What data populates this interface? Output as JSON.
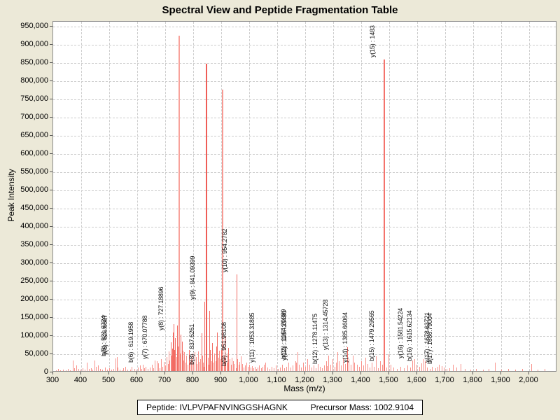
{
  "title": "Spectral View and Peptide Fragmentation Table",
  "footer": {
    "peptide_label": "Peptide:",
    "peptide_value": "IVLPVPAFNVINGGSHAGNK",
    "precursor_label": "Precursor Mass:",
    "precursor_value": "1002.9104"
  },
  "chart_data": {
    "type": "bar",
    "title": "Spectral View and Peptide Fragmentation Table",
    "xlabel": "Mass (m/z)",
    "ylabel": "Peak Intensity",
    "xlim": [
      300,
      2100
    ],
    "ylim": [
      0,
      963000
    ],
    "y_axis_max_tick": 950000,
    "grid": "dashed",
    "legend": "none",
    "x_ticks": [
      300,
      400,
      500,
      600,
      700,
      800,
      900,
      1000,
      1100,
      1200,
      1300,
      1400,
      1500,
      1600,
      1700,
      1800,
      1900,
      2000
    ],
    "y_ticks": [
      0,
      50000,
      100000,
      150000,
      200000,
      250000,
      300000,
      350000,
      400000,
      450000,
      500000,
      550000,
      600000,
      650000,
      700000,
      750000,
      800000,
      850000,
      900000,
      950000
    ],
    "colors": {
      "background": "#ece9d8",
      "plot_bg": "#ffffff",
      "grid": "#cdcdcd",
      "text": "#000000",
      "peak": "#f8938c",
      "peak_strong": "#f26b63",
      "peak_915k": "#f8a29b",
      "peak_845k": "#ef5d57",
      "peak_775k": "#f79a93",
      "peak_860k": "#f4736c"
    },
    "annotated_peaks": [
      {
        "label": "b(5) : 521.6724",
        "mz": 521.7,
        "intensity": 38000
      },
      {
        "label": "y(5) : 526.6887",
        "mz": 526.7,
        "intensity": 43000
      },
      {
        "label": "b(6) : 619.1958",
        "mz": 619.2,
        "intensity": 22000
      },
      {
        "label": "y(7) : 670.07788",
        "mz": 670.1,
        "intensity": 30000
      },
      {
        "label": "y(8) : 727.18896",
        "mz": 727.2,
        "intensity": 110000
      },
      {
        "label": "b(8) : 837.6261",
        "mz": 837.6,
        "intensity": 15000
      },
      {
        "label": "y(9) : 841.09399",
        "mz": 841.1,
        "intensity": 195000
      },
      {
        "label": "b(9) : 951.98108",
        "mz": 952.0,
        "intensity": 12000
      },
      {
        "label": "y(10) : 954.2782",
        "mz": 954.3,
        "intensity": 270000
      },
      {
        "label": "y(11) : 1053.31885",
        "mz": 1053.3,
        "intensity": 22000
      },
      {
        "label": "b(11) : 1164.20389",
        "mz": 1164.2,
        "intensity": 30000
      },
      {
        "label": "y(12) : 1167.33496",
        "mz": 1167.3,
        "intensity": 27000
      },
      {
        "label": "b(12) : 1278.11475",
        "mz": 1278.1,
        "intensity": 18000
      },
      {
        "label": "y(13) : 1314.45728",
        "mz": 1314.5,
        "intensity": 55000
      },
      {
        "label": "y(14) : 1385.66064",
        "mz": 1385.7,
        "intensity": 22000
      },
      {
        "label": "b(15) : 1479.29565",
        "mz": 1479.3,
        "intensity": 25000
      },
      {
        "label": "y(15) : 1483",
        "mz": 1483.3,
        "intensity": 860000,
        "color": "peak_860k"
      },
      {
        "label": "y(16) : 1581.54224",
        "mz": 1581.5,
        "intensity": 32000
      },
      {
        "label": "b(16) : 1615.62134",
        "mz": 1615.6,
        "intensity": 25000
      },
      {
        "label": "y(17) : 1678.63721",
        "mz": 1678.6,
        "intensity": 22000
      },
      {
        "label": "b(17) : 1686.79004",
        "mz": 1686.8,
        "intensity": 18000
      }
    ],
    "noise_peaks": [
      [
        310,
        6000
      ],
      [
        318,
        9000
      ],
      [
        326,
        5000
      ],
      [
        336,
        7000
      ],
      [
        345,
        5000
      ],
      [
        352,
        9000
      ],
      [
        360,
        6000
      ],
      [
        370,
        33000
      ],
      [
        376,
        12000
      ],
      [
        382,
        20000
      ],
      [
        390,
        9000
      ],
      [
        398,
        7000
      ],
      [
        406,
        11000
      ],
      [
        413,
        8000
      ],
      [
        420,
        26000
      ],
      [
        427,
        9000
      ],
      [
        434,
        12000
      ],
      [
        441,
        8000
      ],
      [
        447,
        33000
      ],
      [
        453,
        15000
      ],
      [
        460,
        19000
      ],
      [
        468,
        9000
      ],
      [
        476,
        7000
      ],
      [
        484,
        13000
      ],
      [
        492,
        8000
      ],
      [
        500,
        11000
      ],
      [
        508,
        7000
      ],
      [
        515,
        9000
      ],
      [
        530,
        13000
      ],
      [
        537,
        8000
      ],
      [
        544,
        6000
      ],
      [
        551,
        11000
      ],
      [
        558,
        16000
      ],
      [
        566,
        8000
      ],
      [
        574,
        7000
      ],
      [
        581,
        15000
      ],
      [
        589,
        10000
      ],
      [
        596,
        8000
      ],
      [
        603,
        13000
      ],
      [
        610,
        19000
      ],
      [
        616,
        9000
      ],
      [
        624,
        11000
      ],
      [
        631,
        16000
      ],
      [
        638,
        9000
      ],
      [
        645,
        13000
      ],
      [
        652,
        21000
      ],
      [
        658,
        11000
      ],
      [
        663,
        32000
      ],
      [
        669,
        15000
      ],
      [
        675,
        25000
      ],
      [
        681,
        11000
      ],
      [
        686,
        36000
      ],
      [
        691,
        16000
      ],
      [
        696,
        28000
      ],
      [
        701,
        19000
      ],
      [
        705,
        42000
      ],
      [
        709,
        23000
      ],
      [
        713,
        57000
      ],
      [
        716,
        32000
      ],
      [
        719,
        82000
      ],
      [
        722,
        47000
      ],
      [
        725,
        66000
      ],
      [
        730,
        132000
      ],
      [
        733,
        62000
      ],
      [
        736,
        95000
      ],
      [
        739,
        42000
      ],
      [
        742,
        128000
      ],
      [
        745,
        72000
      ],
      [
        748,
        38000
      ],
      [
        750,
        925000,
        "peak_915k"
      ],
      [
        753,
        52000
      ],
      [
        756,
        103000
      ],
      [
        759,
        85000
      ],
      [
        762,
        60000
      ],
      [
        765,
        32000
      ],
      [
        768,
        56000
      ],
      [
        772,
        26000
      ],
      [
        776,
        46000
      ],
      [
        780,
        21000
      ],
      [
        784,
        62000
      ],
      [
        788,
        31000
      ],
      [
        792,
        36000
      ],
      [
        796,
        52000
      ],
      [
        800,
        26000
      ],
      [
        805,
        55000
      ],
      [
        809,
        42000
      ],
      [
        813,
        23000
      ],
      [
        817,
        57000
      ],
      [
        821,
        29000
      ],
      [
        825,
        36000
      ],
      [
        829,
        108000
      ],
      [
        833,
        46000
      ],
      [
        836,
        26000
      ],
      [
        844,
        31000
      ],
      [
        848,
        848000,
        "peak_845k"
      ],
      [
        852,
        41000
      ],
      [
        855,
        21000
      ],
      [
        857,
        170000
      ],
      [
        860,
        62000
      ],
      [
        864,
        31000
      ],
      [
        867,
        80000
      ],
      [
        871,
        26000
      ],
      [
        875,
        52000
      ],
      [
        879,
        31000
      ],
      [
        882,
        72000
      ],
      [
        885,
        110000
      ],
      [
        889,
        41000
      ],
      [
        893,
        60000
      ],
      [
        897,
        36000
      ],
      [
        901,
        62000
      ],
      [
        905,
        777000,
        "peak_775k"
      ],
      [
        909,
        46000
      ],
      [
        912,
        100000
      ],
      [
        916,
        31000
      ],
      [
        919,
        52000
      ],
      [
        923,
        26000
      ],
      [
        926,
        67000
      ],
      [
        930,
        36000
      ],
      [
        934,
        21000
      ],
      [
        938,
        41000
      ],
      [
        942,
        31000
      ],
      [
        946,
        23000
      ],
      [
        958,
        36000
      ],
      [
        962,
        21000
      ],
      [
        966,
        29000
      ],
      [
        970,
        45000
      ],
      [
        975,
        23000
      ],
      [
        980,
        13000
      ],
      [
        985,
        19000
      ],
      [
        990,
        26000
      ],
      [
        995,
        16000
      ],
      [
        1000,
        21000
      ],
      [
        1005,
        13000
      ],
      [
        1010,
        17000
      ],
      [
        1015,
        11000
      ],
      [
        1020,
        15000
      ],
      [
        1026,
        9000
      ],
      [
        1031,
        13000
      ],
      [
        1036,
        19000
      ],
      [
        1042,
        11000
      ],
      [
        1048,
        16000
      ],
      [
        1058,
        26000
      ],
      [
        1065,
        13000
      ],
      [
        1072,
        9000
      ],
      [
        1080,
        15000
      ],
      [
        1088,
        11000
      ],
      [
        1095,
        19000
      ],
      [
        1102,
        9000
      ],
      [
        1110,
        13000
      ],
      [
        1118,
        21000
      ],
      [
        1125,
        11000
      ],
      [
        1132,
        16000
      ],
      [
        1140,
        26000
      ],
      [
        1148,
        13000
      ],
      [
        1155,
        19000
      ],
      [
        1172,
        56000
      ],
      [
        1178,
        21000
      ],
      [
        1185,
        13000
      ],
      [
        1192,
        26000
      ],
      [
        1200,
        16000
      ],
      [
        1208,
        36000
      ],
      [
        1215,
        21000
      ],
      [
        1222,
        13000
      ],
      [
        1230,
        19000
      ],
      [
        1238,
        11000
      ],
      [
        1245,
        23000
      ],
      [
        1252,
        15000
      ],
      [
        1260,
        11000
      ],
      [
        1268,
        19000
      ],
      [
        1275,
        31000
      ],
      [
        1283,
        46000
      ],
      [
        1290,
        21000
      ],
      [
        1298,
        36000
      ],
      [
        1305,
        16000
      ],
      [
        1310,
        26000
      ],
      [
        1320,
        31000
      ],
      [
        1328,
        19000
      ],
      [
        1335,
        41000
      ],
      [
        1342,
        23000
      ],
      [
        1350,
        70000
      ],
      [
        1356,
        36000
      ],
      [
        1363,
        21000
      ],
      [
        1370,
        46000
      ],
      [
        1376,
        26000
      ],
      [
        1392,
        16000
      ],
      [
        1400,
        31000
      ],
      [
        1408,
        19000
      ],
      [
        1415,
        41000
      ],
      [
        1422,
        23000
      ],
      [
        1430,
        13000
      ],
      [
        1438,
        26000
      ],
      [
        1445,
        16000
      ],
      [
        1452,
        45000
      ],
      [
        1460,
        11000
      ],
      [
        1468,
        31000
      ],
      [
        1475,
        21000
      ],
      [
        1490,
        14000
      ],
      [
        1497,
        50000
      ],
      [
        1505,
        21000
      ],
      [
        1515,
        13000
      ],
      [
        1528,
        9000
      ],
      [
        1540,
        15000
      ],
      [
        1552,
        11000
      ],
      [
        1565,
        19000
      ],
      [
        1575,
        13000
      ],
      [
        1590,
        36000
      ],
      [
        1598,
        21000
      ],
      [
        1608,
        16000
      ],
      [
        1622,
        36000
      ],
      [
        1628,
        31000
      ],
      [
        1635,
        13000
      ],
      [
        1645,
        9000
      ],
      [
        1652,
        16000
      ],
      [
        1665,
        11000
      ],
      [
        1672,
        15000
      ],
      [
        1695,
        13000
      ],
      [
        1705,
        9000
      ],
      [
        1715,
        11000
      ],
      [
        1728,
        21000
      ],
      [
        1740,
        13000
      ],
      [
        1756,
        23000
      ],
      [
        1770,
        9000
      ],
      [
        1790,
        7000
      ],
      [
        1810,
        9000
      ],
      [
        1835,
        7000
      ],
      [
        1855,
        9000
      ],
      [
        1877,
        26000
      ],
      [
        1900,
        7000
      ],
      [
        1925,
        9000
      ],
      [
        1950,
        7000
      ],
      [
        1975,
        9000
      ],
      [
        2008,
        23000
      ],
      [
        2030,
        7000
      ],
      [
        2055,
        9000
      ]
    ]
  }
}
